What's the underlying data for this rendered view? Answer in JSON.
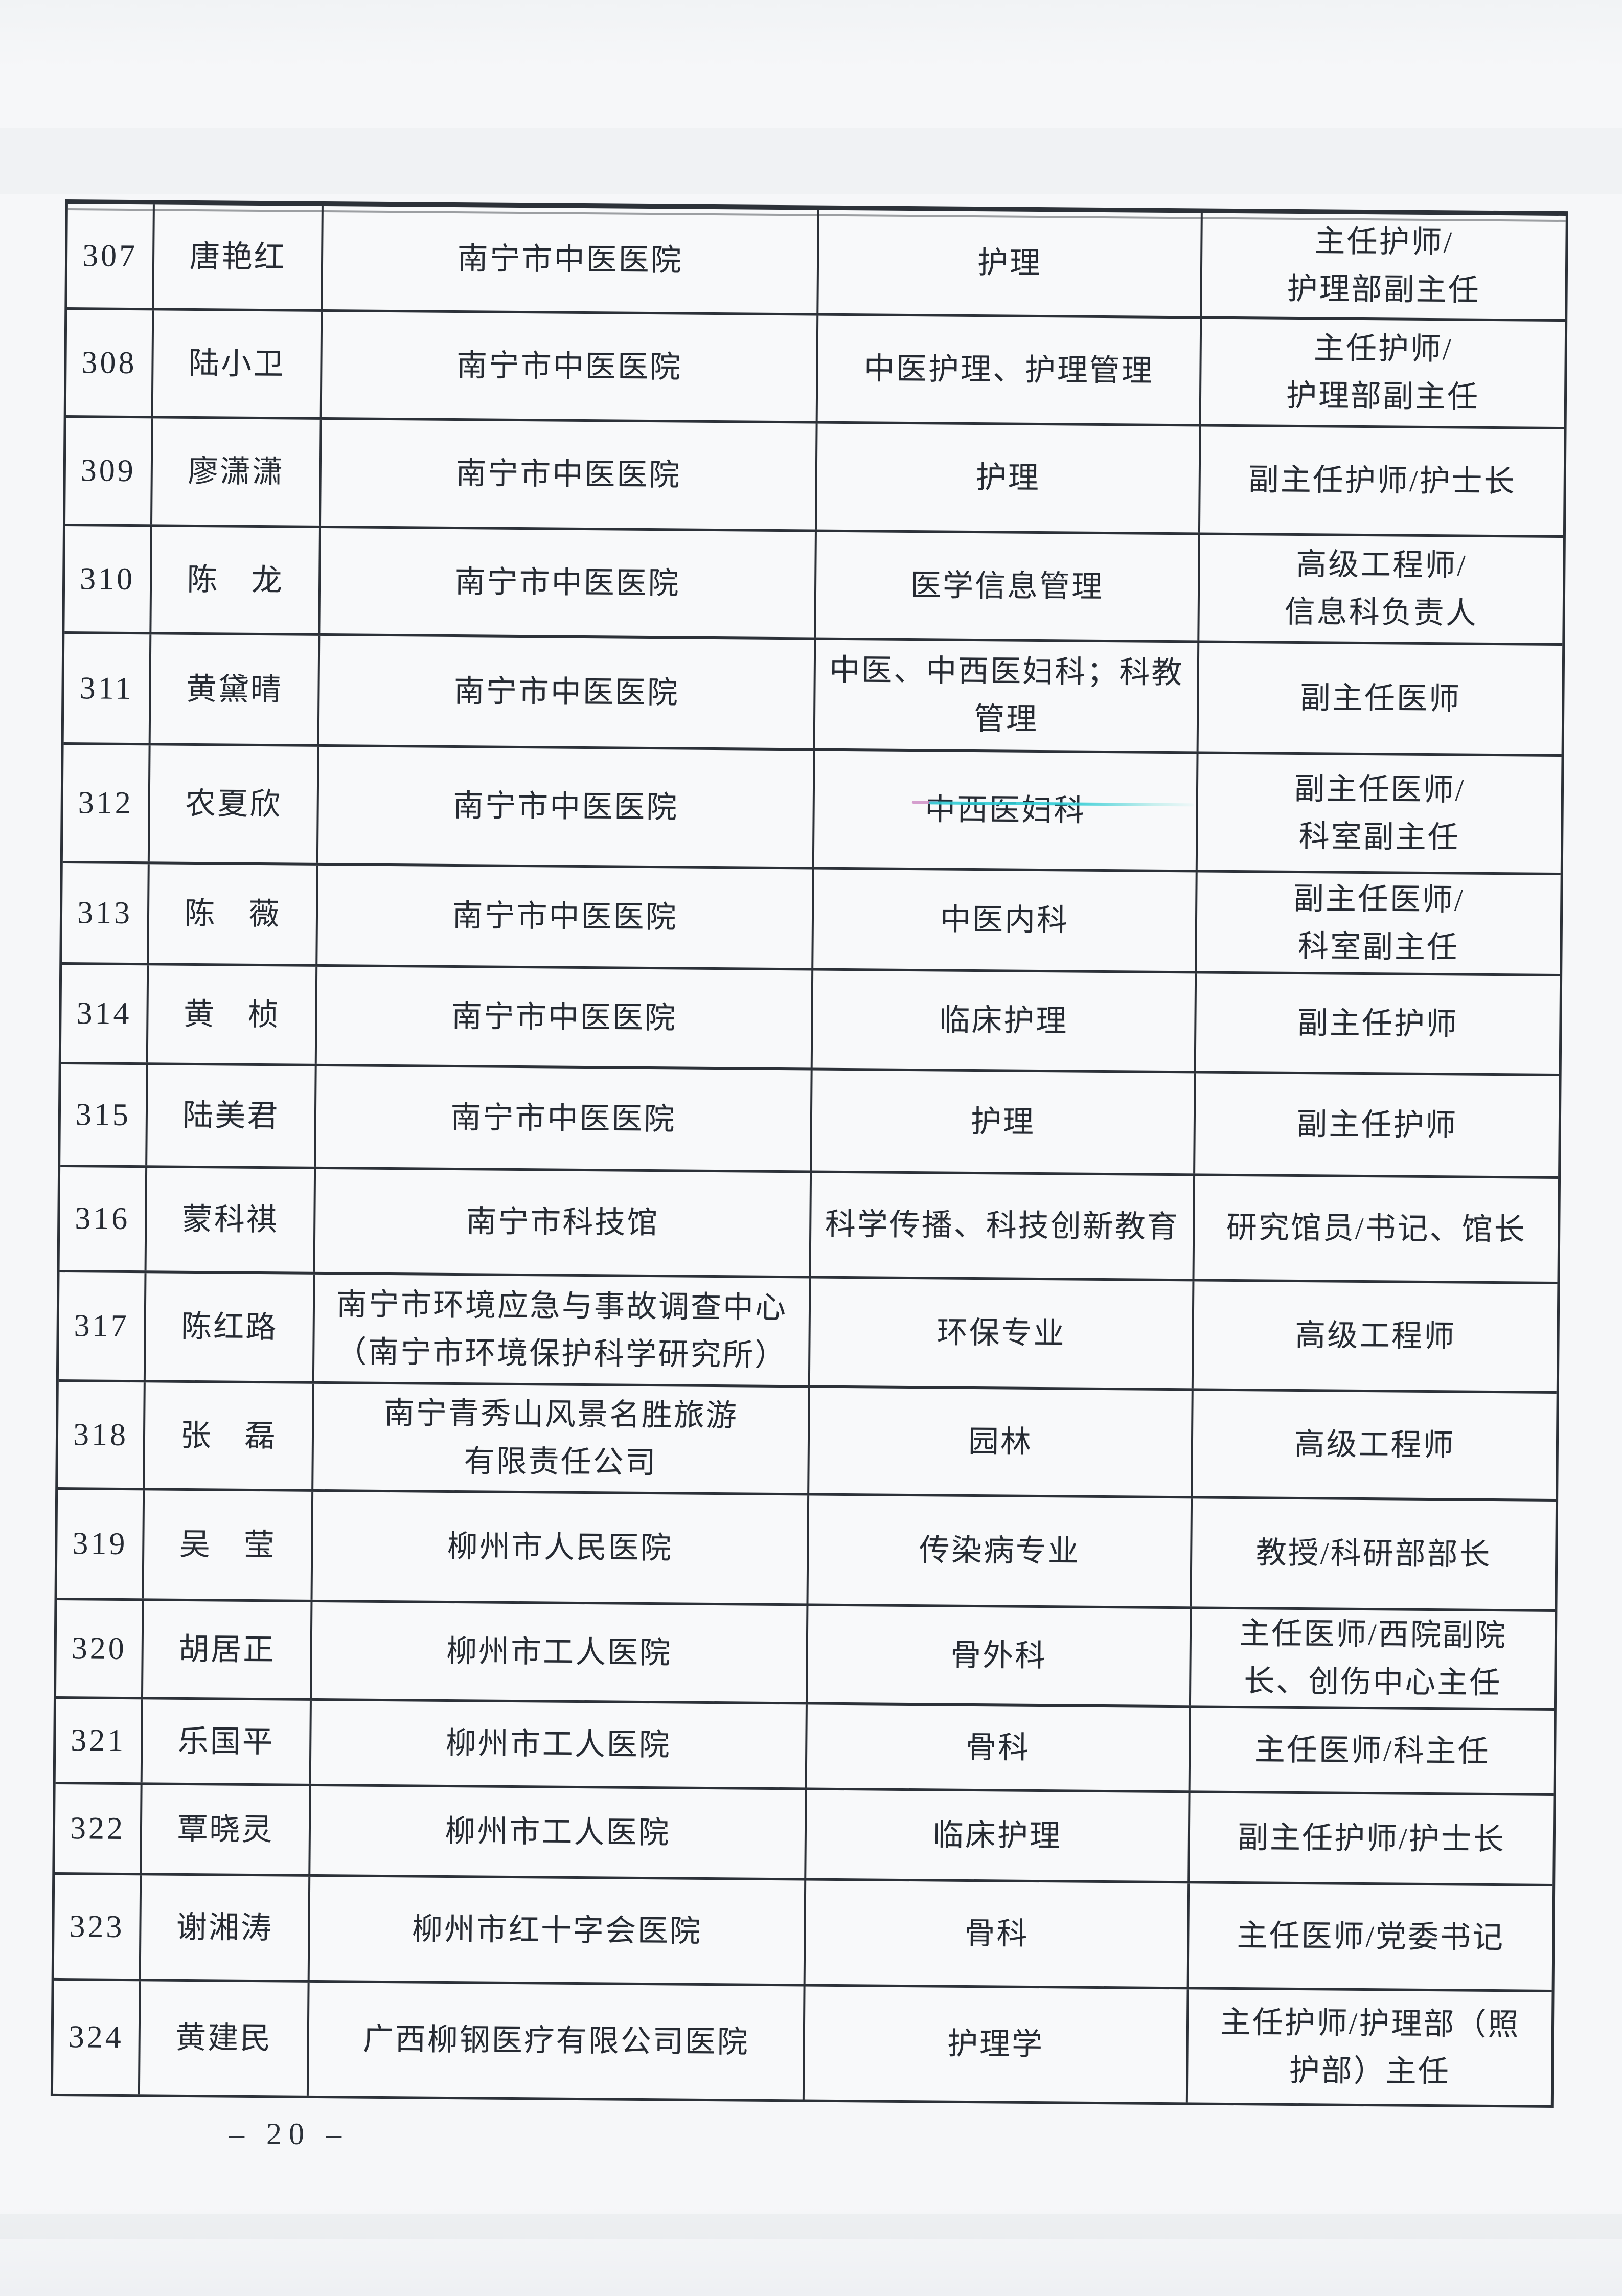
{
  "document": {
    "page_footer": "– 20 –"
  },
  "table": {
    "rows": [
      {
        "no": "307",
        "name": "唐艳红",
        "org": "南宁市中医医院",
        "specialty": "护理",
        "title": "主任护师/\n护理部副主任"
      },
      {
        "no": "308",
        "name": "陆小卫",
        "org": "南宁市中医医院",
        "specialty": "中医护理、护理管理",
        "title": "主任护师/\n护理部副主任"
      },
      {
        "no": "309",
        "name": "廖潇潇",
        "org": "南宁市中医医院",
        "specialty": "护理",
        "title": "副主任护师/护士长"
      },
      {
        "no": "310",
        "name": "陈　龙",
        "org": "南宁市中医医院",
        "specialty": "医学信息管理",
        "title": "高级工程师/\n信息科负责人"
      },
      {
        "no": "311",
        "name": "黄黛晴",
        "org": "南宁市中医医院",
        "specialty": "中医、中西医妇科；科教\n管理",
        "title": "副主任医师"
      },
      {
        "no": "312",
        "name": "农夏欣",
        "org": "南宁市中医医院",
        "specialty": "中西医妇科",
        "title": "副主任医师/\n科室副主任"
      },
      {
        "no": "313",
        "name": "陈　薇",
        "org": "南宁市中医医院",
        "specialty": "中医内科",
        "title": "副主任医师/\n科室副主任"
      },
      {
        "no": "314",
        "name": "黄　桢",
        "org": "南宁市中医医院",
        "specialty": "临床护理",
        "title": "副主任护师"
      },
      {
        "no": "315",
        "name": "陆美君",
        "org": "南宁市中医医院",
        "specialty": "护理",
        "title": "副主任护师"
      },
      {
        "no": "316",
        "name": "蒙科祺",
        "org": "南宁市科技馆",
        "specialty": "科学传播、科技创新教育",
        "title": "研究馆员/书记、馆长"
      },
      {
        "no": "317",
        "name": "陈红路",
        "org": "南宁市环境应急与事故调查中心\n（南宁市环境保护科学研究所）",
        "specialty": "环保专业",
        "title": "高级工程师"
      },
      {
        "no": "318",
        "name": "张　磊",
        "org": "南宁青秀山风景名胜旅游\n有限责任公司",
        "specialty": "园林",
        "title": "高级工程师"
      },
      {
        "no": "319",
        "name": "吴　莹",
        "org": "柳州市人民医院",
        "specialty": "传染病专业",
        "title": "教授/科研部部长"
      },
      {
        "no": "320",
        "name": "胡居正",
        "org": "柳州市工人医院",
        "specialty": "骨外科",
        "title": "主任医师/西院副院\n长、创伤中心主任"
      },
      {
        "no": "321",
        "name": "乐国平",
        "org": "柳州市工人医院",
        "specialty": "骨科",
        "title": "主任医师/科主任"
      },
      {
        "no": "322",
        "name": "覃晓灵",
        "org": "柳州市工人医院",
        "specialty": "临床护理",
        "title": "副主任护师/护士长"
      },
      {
        "no": "323",
        "name": "谢湘涛",
        "org": "柳州市红十字会医院",
        "specialty": "骨科",
        "title": "主任医师/党委书记"
      },
      {
        "no": "324",
        "name": "黄建民",
        "org": "广西柳钢医疗有限公司医院",
        "specialty": "护理学",
        "title": "主任护师/护理部（照\n护部）主任"
      }
    ]
  },
  "artifacts": {
    "highlight_pink": "#cf8fc5",
    "highlight_cyan": "#2fccd4"
  }
}
